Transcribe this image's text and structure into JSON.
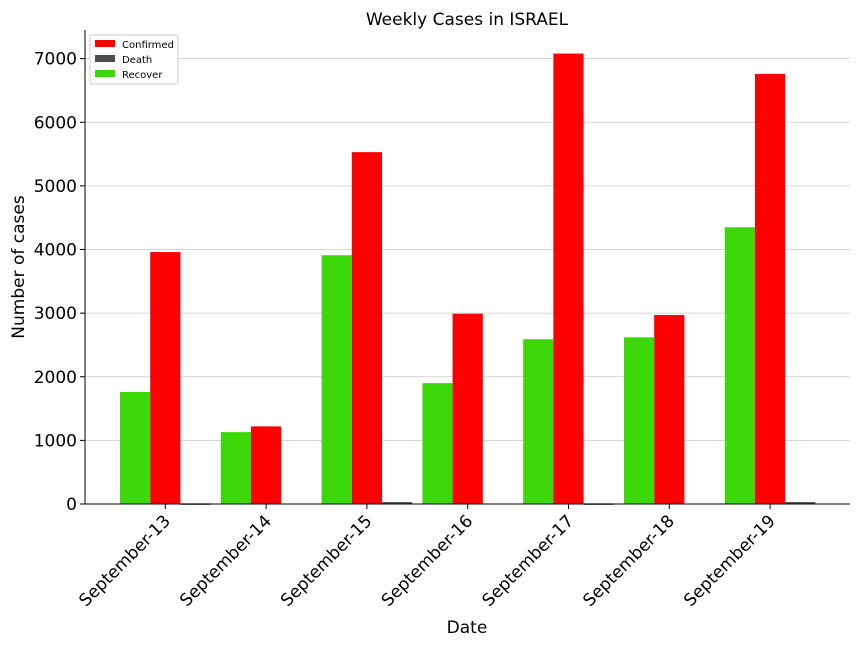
{
  "chart_data": {
    "type": "bar",
    "title": "Weekly Cases in ISRAEL",
    "xlabel": "Date",
    "ylabel": "Number of cases",
    "categories": [
      "September-13",
      "September-14",
      "September-15",
      "September-16",
      "September-17",
      "September-18",
      "September-19"
    ],
    "series": [
      {
        "name": "Recover",
        "color": "#3dd80a",
        "values": [
          1760,
          1130,
          3910,
          1900,
          2590,
          2620,
          4350
        ]
      },
      {
        "name": "Confirmed",
        "color": "#ff0000",
        "values": [
          3960,
          1220,
          5530,
          2990,
          7080,
          2970,
          6760
        ]
      },
      {
        "name": "Death",
        "color": "#4d4d4d",
        "values": [
          10,
          0,
          30,
          0,
          10,
          0,
          30
        ]
      }
    ],
    "legend": {
      "position": "top-left",
      "entries": [
        {
          "name": "Confirmed",
          "color": "#ff0000"
        },
        {
          "name": "Death",
          "color": "#4d4d4d"
        },
        {
          "name": "Recover",
          "color": "#3dd80a"
        }
      ]
    },
    "ylim": [
      0,
      7450
    ],
    "yticks": [
      0,
      1000,
      2000,
      3000,
      4000,
      5000,
      6000,
      7000
    ],
    "grid": "y"
  }
}
